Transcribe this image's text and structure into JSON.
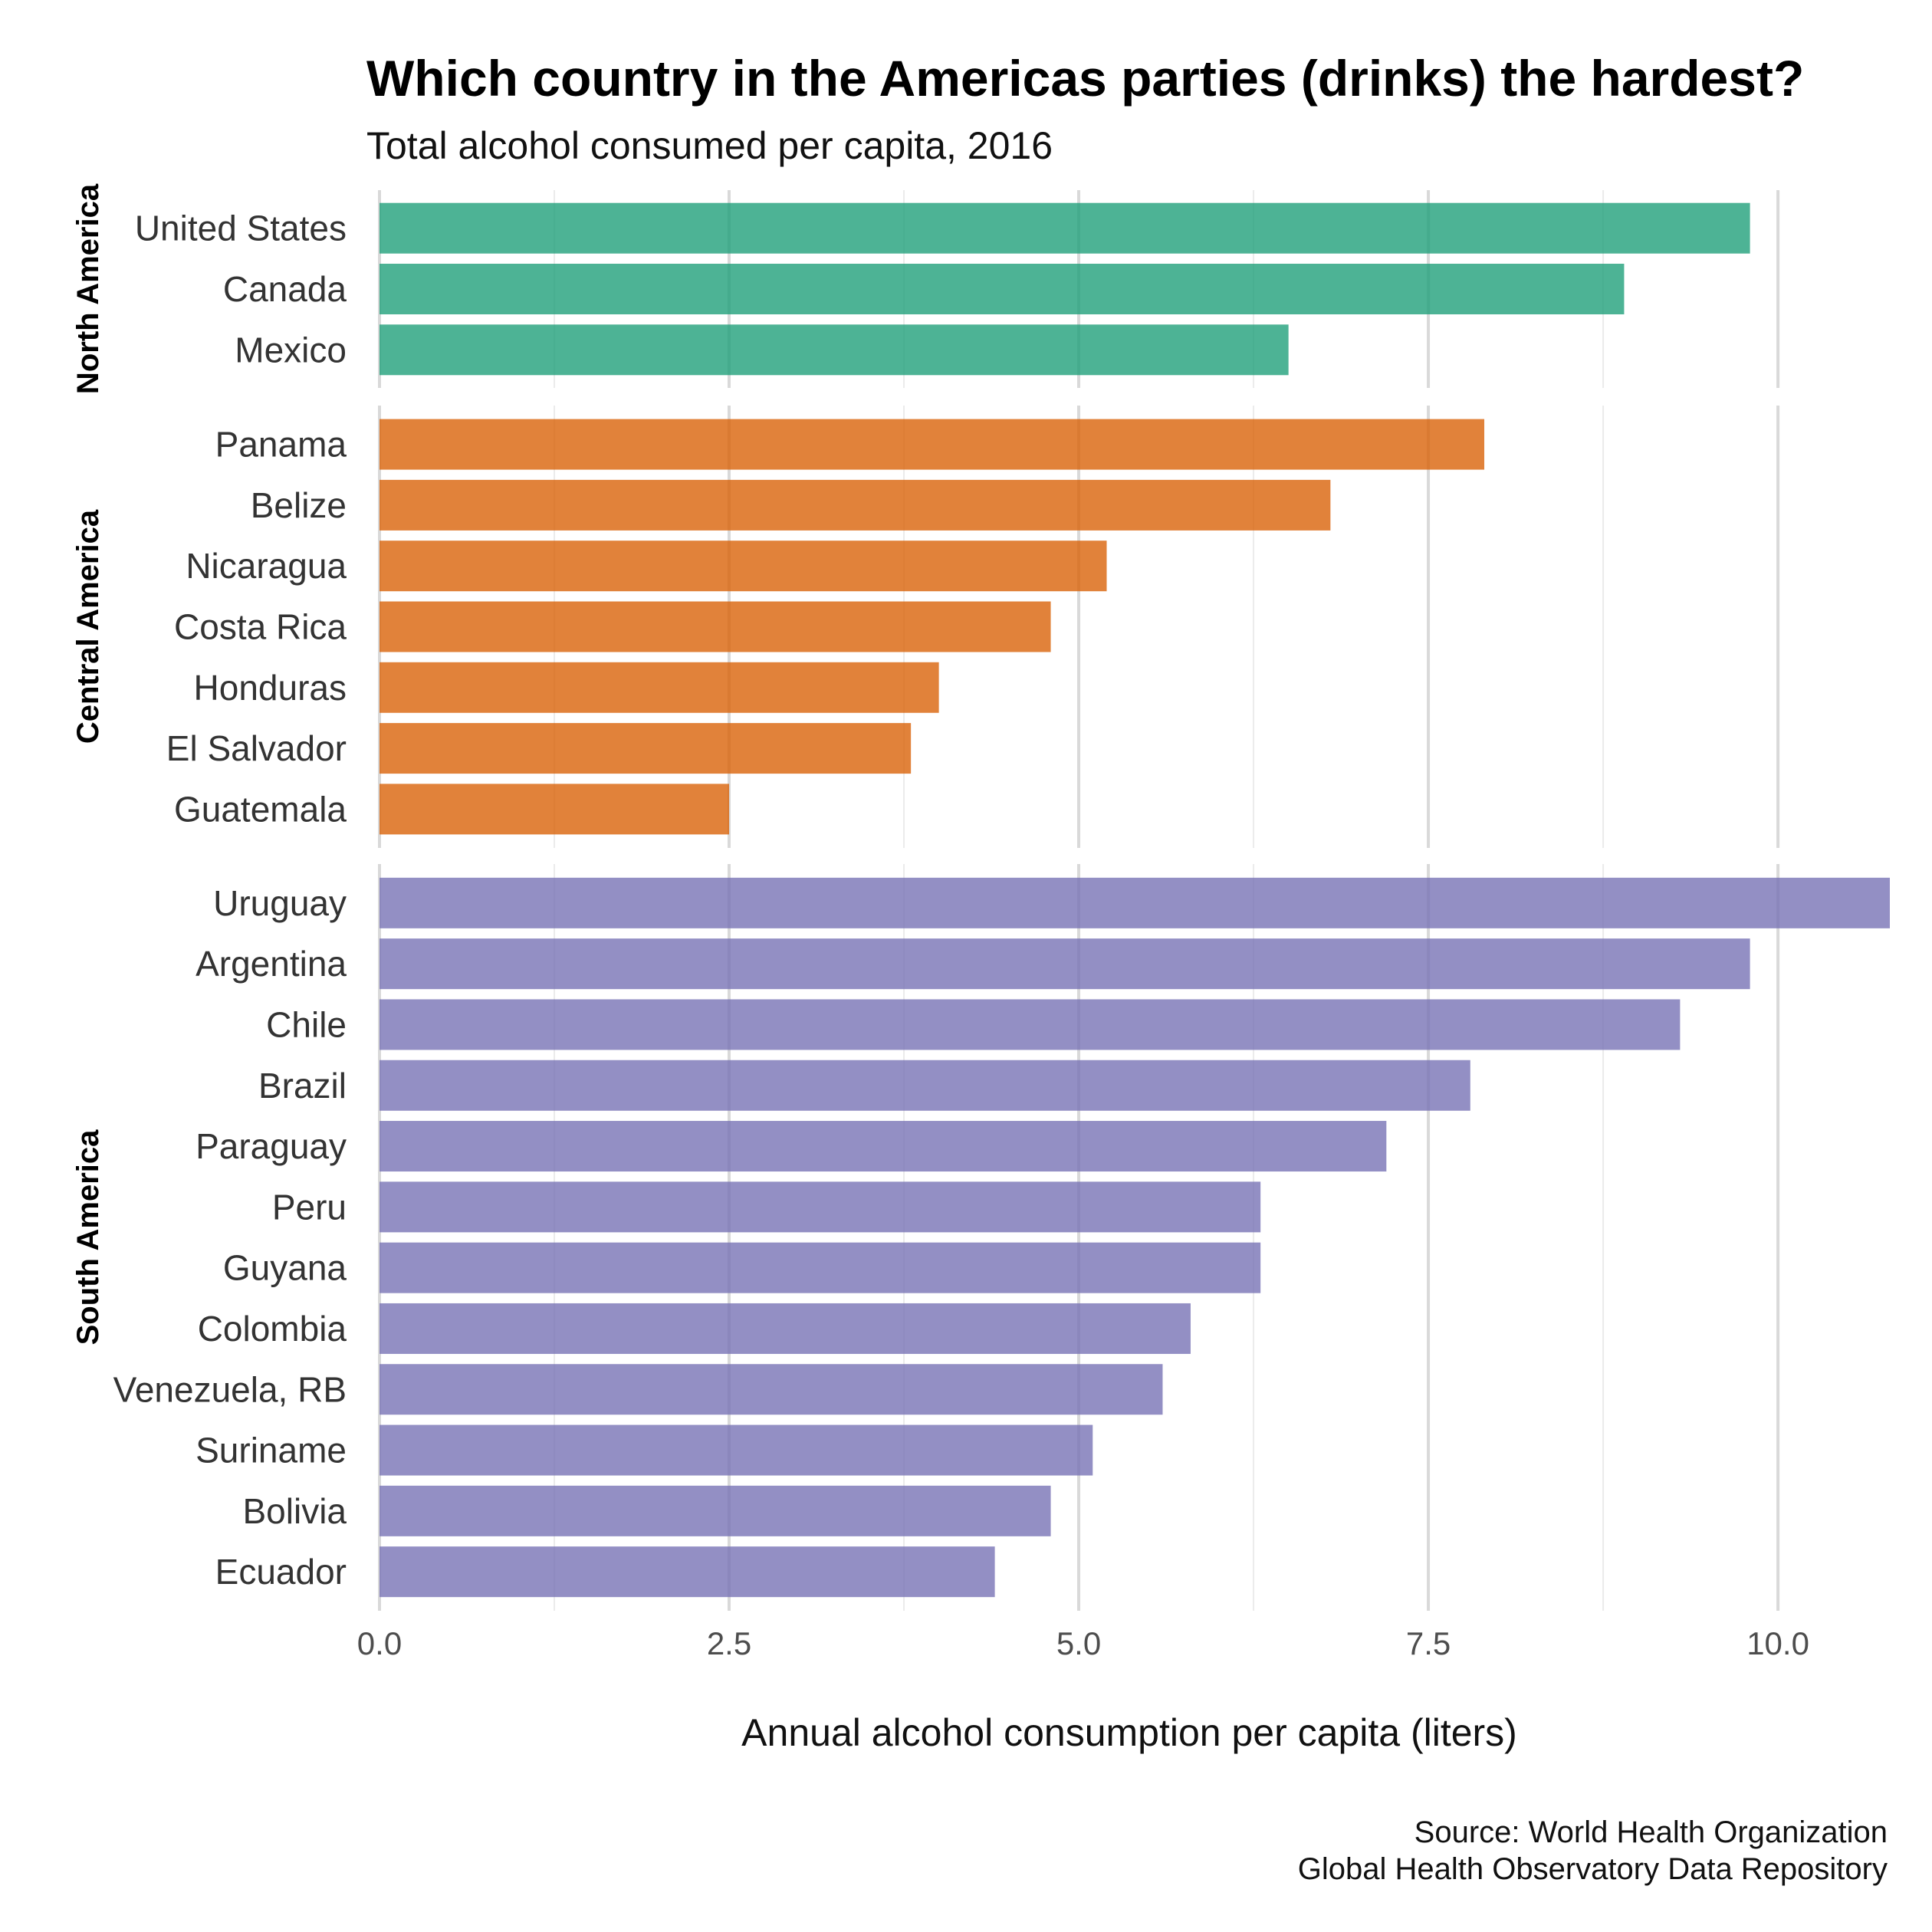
{
  "chart_data": {
    "type": "bar",
    "orientation": "horizontal",
    "title": "Which country in the Americas parties (drinks) the hardest?",
    "subtitle": "Total alcohol consumed per capita, 2016",
    "xlabel": "Annual alcohol consumption per capita (liters)",
    "ylabel": "",
    "xlim": [
      0,
      10.8
    ],
    "x_ticks": [
      0,
      2.5,
      5,
      7.5,
      10
    ],
    "x_tick_labels": [
      "0.0",
      "2.5",
      "5.0",
      "7.5",
      "10.0"
    ],
    "grid": true,
    "legend": "none",
    "caption": [
      "Source: World Health Organization",
      "Global Health Observatory Data Repository"
    ],
    "facets": [
      {
        "name": "North America",
        "color": "#1b9e77",
        "categories": [
          "United States",
          "Canada",
          "Mexico"
        ],
        "values": [
          9.8,
          8.9,
          6.5
        ]
      },
      {
        "name": "Central America",
        "color": "#d95f02",
        "categories": [
          "Panama",
          "Belize",
          "Nicaragua",
          "Costa Rica",
          "Honduras",
          "El Salvador",
          "Guatemala"
        ],
        "values": [
          7.9,
          6.8,
          5.2,
          4.8,
          4.0,
          3.8,
          2.5
        ]
      },
      {
        "name": "South America",
        "color": "#7570b3",
        "categories": [
          "Uruguay",
          "Argentina",
          "Chile",
          "Brazil",
          "Paraguay",
          "Peru",
          "Guyana",
          "Colombia",
          "Venezuela, RB",
          "Suriname",
          "Bolivia",
          "Ecuador"
        ],
        "values": [
          10.8,
          9.8,
          9.3,
          7.8,
          7.2,
          6.3,
          6.3,
          5.8,
          5.6,
          5.1,
          4.8,
          4.4
        ]
      }
    ]
  }
}
